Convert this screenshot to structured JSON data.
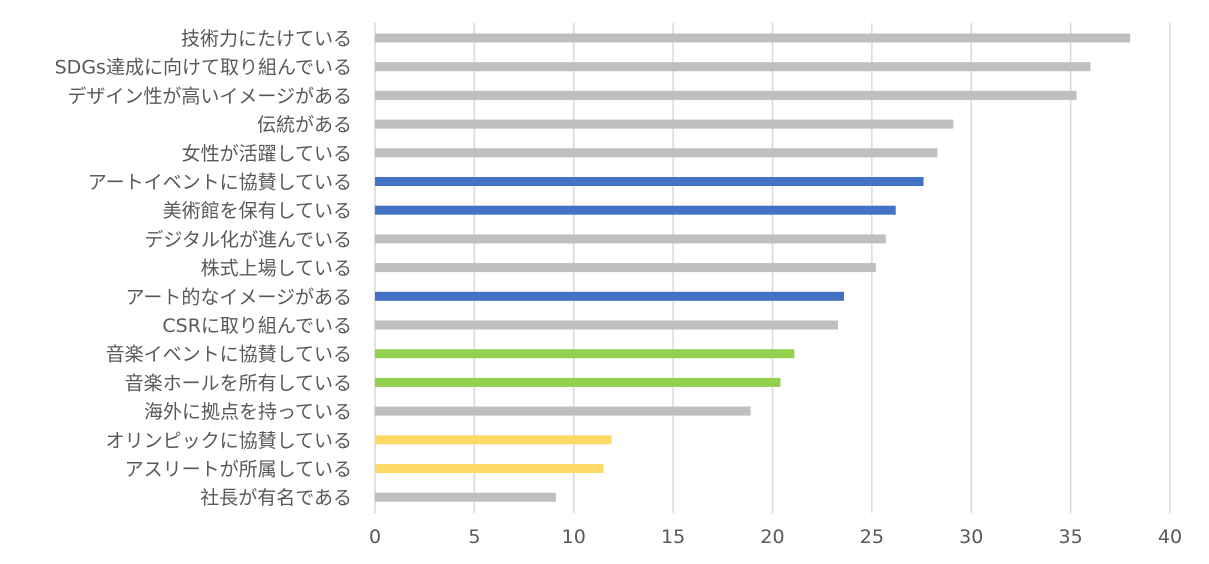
{
  "chart_data": {
    "type": "bar",
    "orientation": "horizontal",
    "title": "",
    "xlabel": "",
    "ylabel": "",
    "xlim": [
      0,
      40
    ],
    "x_ticks": [
      0,
      5,
      10,
      15,
      20,
      25,
      30,
      35,
      40
    ],
    "grid": "vertical",
    "legend": "none",
    "categories": [
      "技術力にたけている",
      "SDGs達成に向けて取り組んでいる",
      "デザイン性が高いイメージがある",
      "伝統がある",
      "女性が活躍している",
      "アートイベントに協賛している",
      "美術館を保有している",
      "デジタル化が進んでいる",
      "株式上場している",
      "アート的なイメージがある",
      "CSRに取り組んでいる",
      "音楽イベントに協賛している",
      "音楽ホールを所有している",
      "海外に拠点を持っている",
      "オリンピックに協賛している",
      "アスリートが所属している",
      "社長が有名である"
    ],
    "values": [
      38.0,
      36.0,
      35.3,
      29.1,
      28.3,
      27.6,
      26.2,
      25.7,
      25.2,
      23.6,
      23.3,
      21.1,
      20.4,
      18.9,
      11.9,
      11.5,
      9.1
    ],
    "bar_colors": [
      "#bfbfbf",
      "#bfbfbf",
      "#bfbfbf",
      "#bfbfbf",
      "#bfbfbf",
      "#4472c4",
      "#4472c4",
      "#bfbfbf",
      "#bfbfbf",
      "#4472c4",
      "#bfbfbf",
      "#92d050",
      "#92d050",
      "#bfbfbf",
      "#ffd966",
      "#ffd966",
      "#bfbfbf"
    ],
    "colors": {
      "text": "#595959",
      "grid": "#d9d9d9",
      "default_bar": "#bfbfbf",
      "art": "#4472c4",
      "music": "#92d050",
      "sports": "#ffd966"
    }
  }
}
